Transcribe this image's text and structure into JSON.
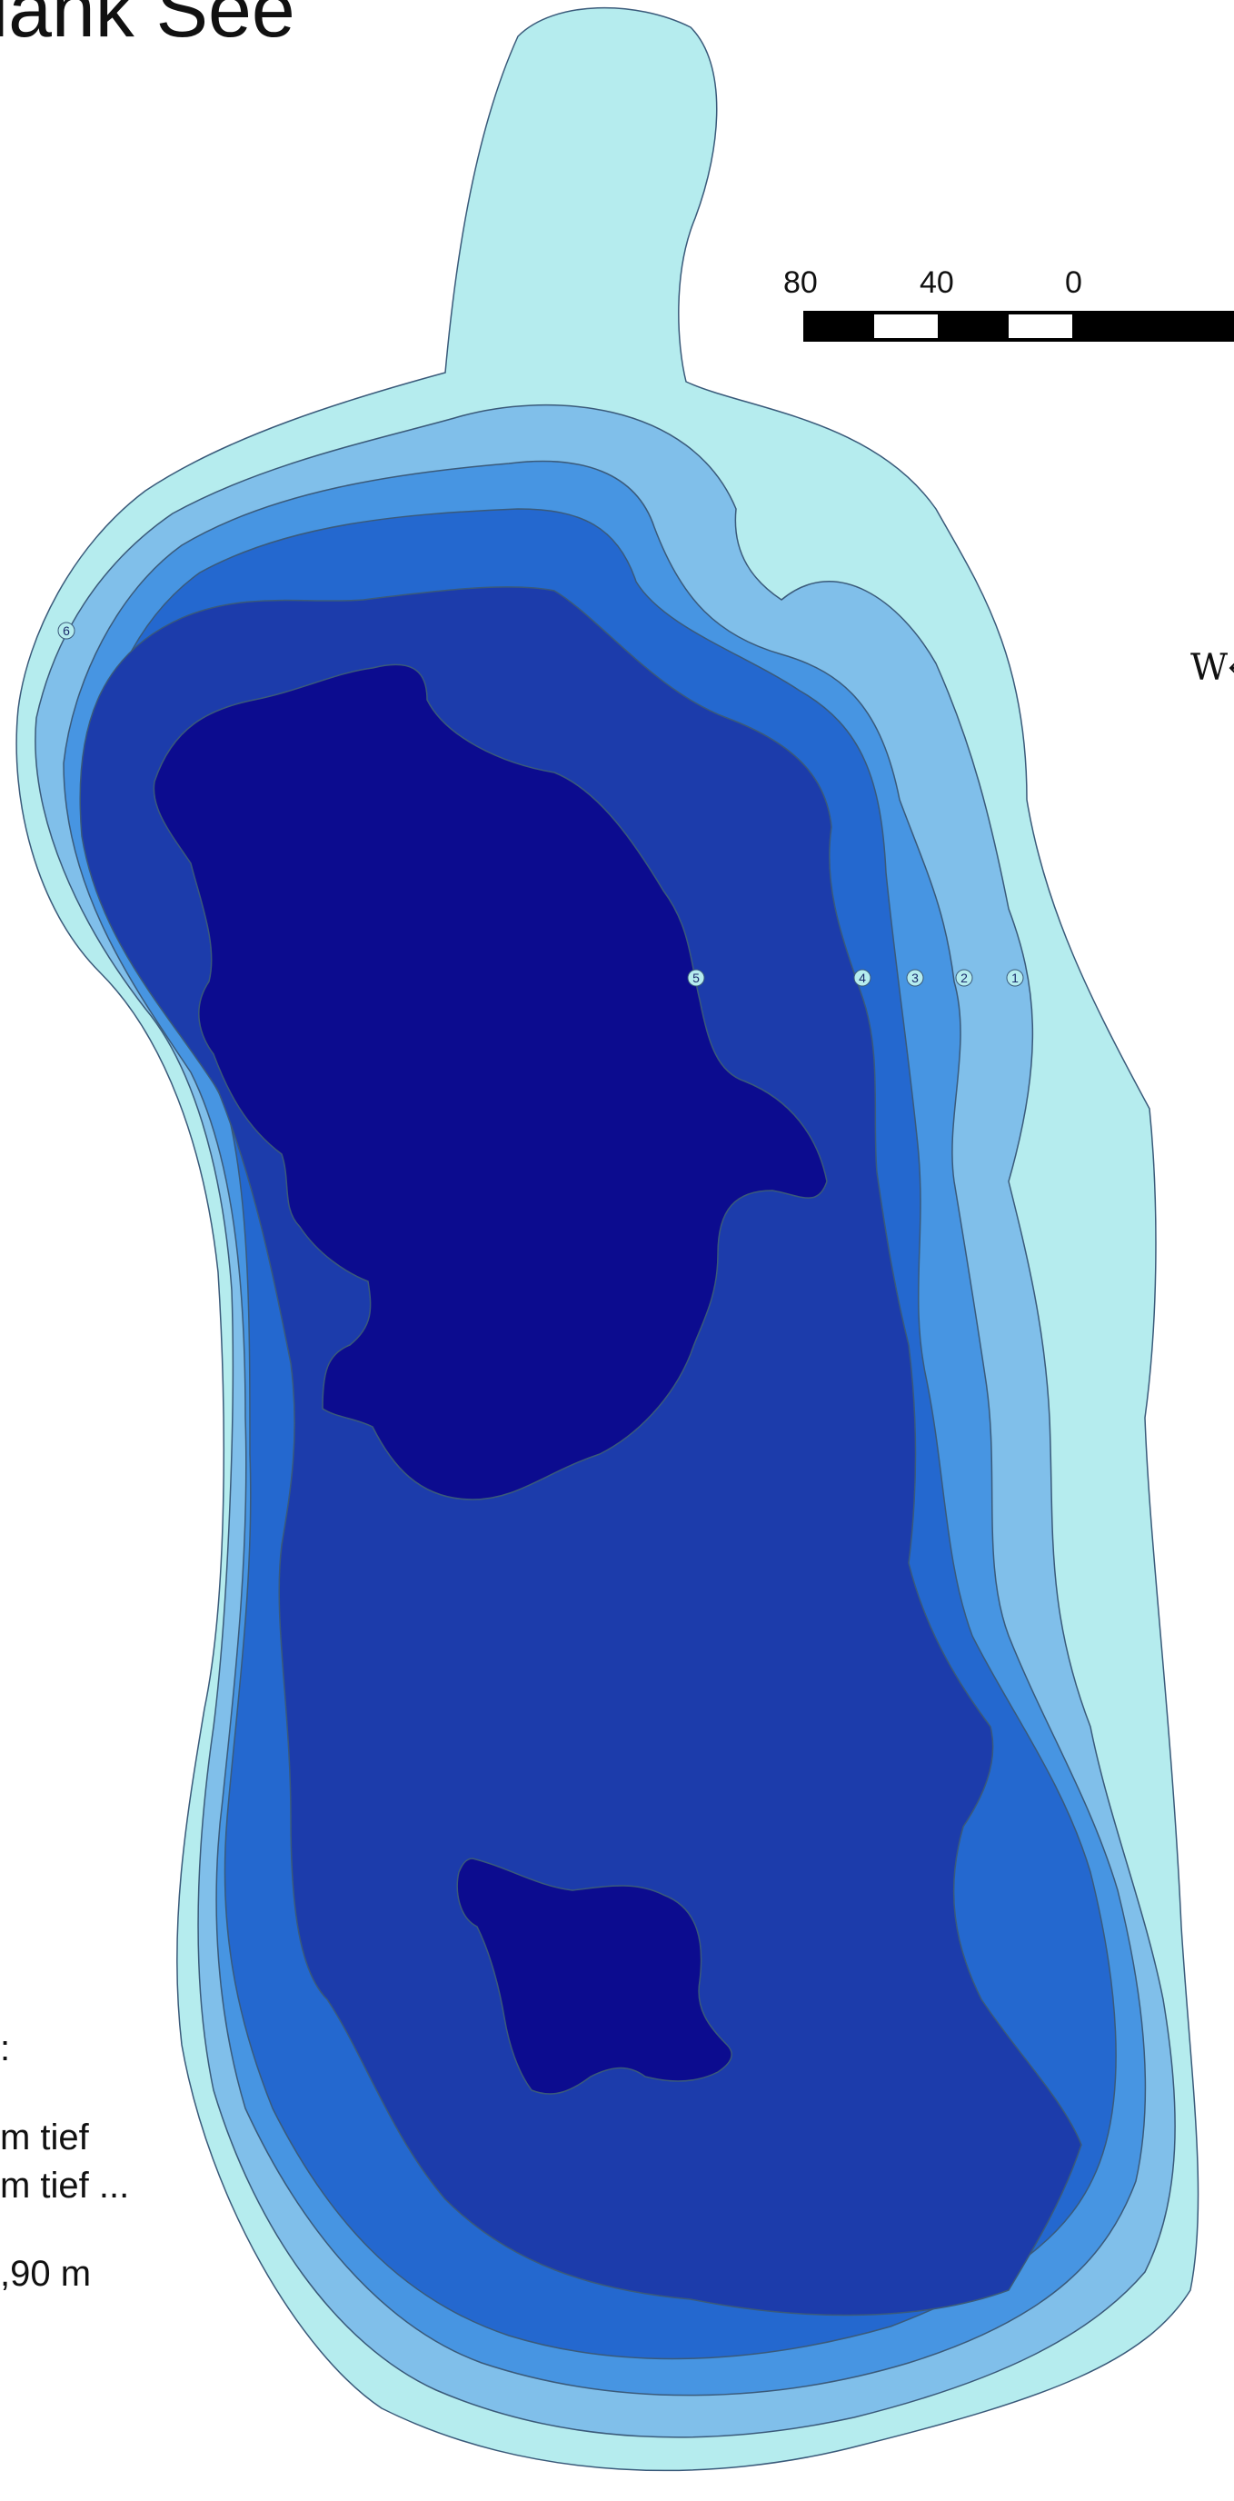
{
  "title": "lank See",
  "scale_bar": {
    "labels": [
      "80",
      "40",
      "0"
    ]
  },
  "compass": {
    "label": "W"
  },
  "legend": {
    "lines": [
      ":",
      "m tief",
      "m tief ...",
      ",90 m"
    ]
  },
  "depth_markers": [
    "1",
    "2",
    "3",
    "4",
    "5",
    "6"
  ],
  "colors": {
    "water_shallow": "#b5ecee",
    "depth_1": "#80bfea",
    "depth_2": "#4795e2",
    "depth_3": "#2468cf",
    "depth_4": "#1c3cab",
    "depth_5": "#0c0c8f",
    "outline": "#3a5a7a"
  }
}
